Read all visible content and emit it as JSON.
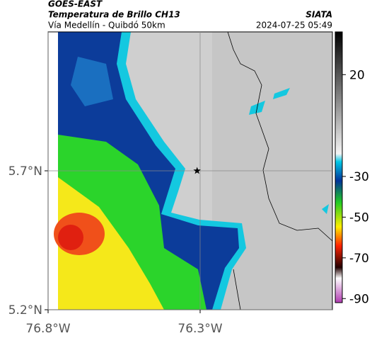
{
  "header": {
    "title": "GOES-EAST",
    "subtitle": "Temperatura de Brillo CH13",
    "region": "Vía Medellín - Quibdó 50km",
    "source": "SIATA",
    "datetime": "2024-07-25 05:49"
  },
  "map": {
    "latlim": [
      5.2,
      6.2
    ],
    "lonlim": [
      -76.8,
      -75.865
    ],
    "lat_ticks": [
      {
        "value": 5.7,
        "label": "5.7°N"
      },
      {
        "value": 5.2,
        "label": "5.2°N"
      }
    ],
    "lon_ticks": [
      {
        "value": -76.8,
        "label": "76.8°W"
      },
      {
        "value": -76.3,
        "label": "76.3°W"
      }
    ],
    "marker": {
      "lon": -76.31,
      "lat": 5.7
    }
  },
  "colorbar": {
    "lim": [
      -92,
      41
    ],
    "ticks": [
      20,
      -30,
      -50,
      -70,
      -90
    ]
  }
}
